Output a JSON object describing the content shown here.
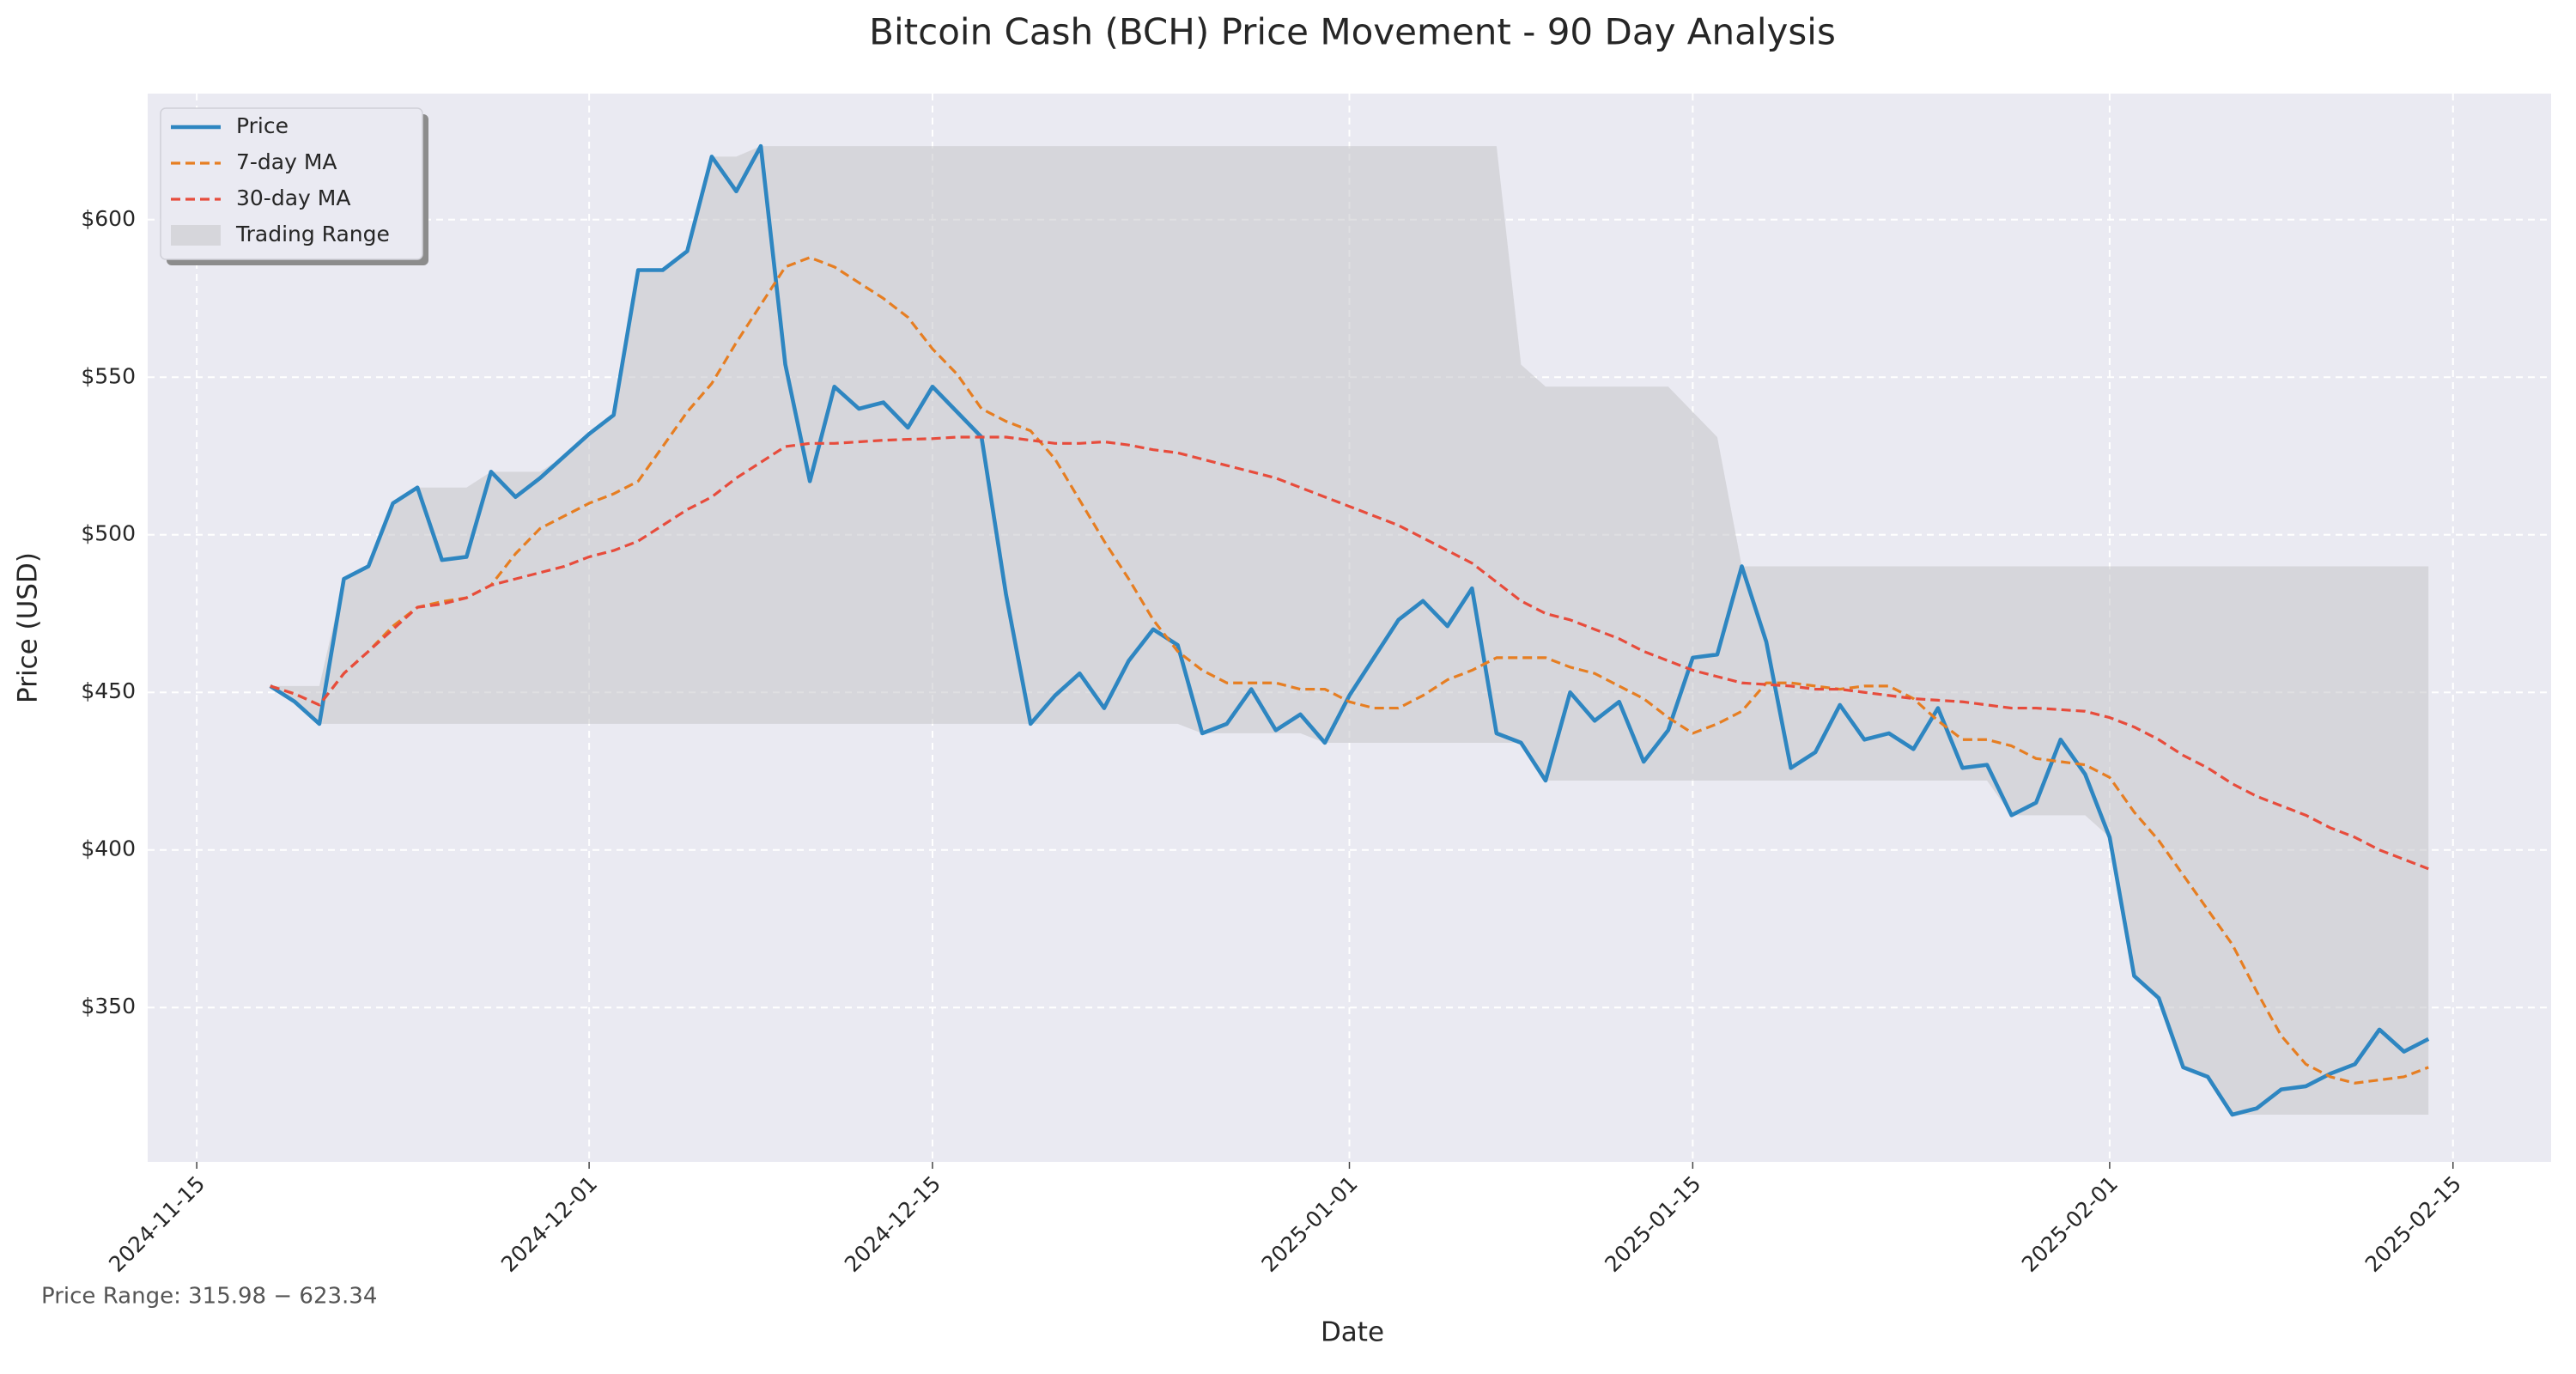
{
  "chart_data": {
    "type": "line",
    "title": "Bitcoin Cash (BCH) Price Movement - 90 Day Analysis",
    "xlabel": "Date",
    "ylabel": "Price (USD)",
    "annotation": "Price Range: 315.98 − 623.34",
    "grid": true,
    "legend": "upper left",
    "x": [
      "2024-11-18",
      "2024-11-19",
      "2024-11-20",
      "2024-11-21",
      "2024-11-22",
      "2024-11-23",
      "2024-11-24",
      "2024-11-25",
      "2024-11-26",
      "2024-11-27",
      "2024-11-28",
      "2024-11-29",
      "2024-11-30",
      "2024-12-01",
      "2024-12-02",
      "2024-12-03",
      "2024-12-04",
      "2024-12-05",
      "2024-12-06",
      "2024-12-07",
      "2024-12-08",
      "2024-12-09",
      "2024-12-10",
      "2024-12-11",
      "2024-12-12",
      "2024-12-13",
      "2024-12-14",
      "2024-12-15",
      "2024-12-16",
      "2024-12-17",
      "2024-12-18",
      "2024-12-19",
      "2024-12-20",
      "2024-12-21",
      "2024-12-22",
      "2024-12-23",
      "2024-12-24",
      "2024-12-25",
      "2024-12-26",
      "2024-12-27",
      "2024-12-28",
      "2024-12-29",
      "2024-12-30",
      "2024-12-31",
      "2025-01-01",
      "2025-01-02",
      "2025-01-03",
      "2025-01-04",
      "2025-01-05",
      "2025-01-06",
      "2025-01-07",
      "2025-01-08",
      "2025-01-09",
      "2025-01-10",
      "2025-01-11",
      "2025-01-12",
      "2025-01-13",
      "2025-01-14",
      "2025-01-15",
      "2025-01-16",
      "2025-01-17",
      "2025-01-18",
      "2025-01-19",
      "2025-01-20",
      "2025-01-21",
      "2025-01-22",
      "2025-01-23",
      "2025-01-24",
      "2025-01-25",
      "2025-01-26",
      "2025-01-27",
      "2025-01-28",
      "2025-01-29",
      "2025-01-30",
      "2025-01-31",
      "2025-02-01",
      "2025-02-02",
      "2025-02-03",
      "2025-02-04",
      "2025-02-05",
      "2025-02-06",
      "2025-02-07",
      "2025-02-08",
      "2025-02-09",
      "2025-02-10",
      "2025-02-11",
      "2025-02-12",
      "2025-02-13",
      "2025-02-14"
    ],
    "series": [
      {
        "name": "Price",
        "color": "#2e86c1",
        "linestyle": "solid",
        "values": [
          452,
          447,
          440,
          486,
          490,
          510,
          515,
          492,
          493,
          520,
          512,
          518,
          525,
          532,
          538,
          584,
          584,
          590,
          620,
          609,
          623.34,
          554,
          517,
          547,
          540,
          542,
          534,
          547,
          539,
          531,
          481,
          440,
          449,
          456,
          445,
          460,
          470,
          465,
          437,
          440,
          451,
          438,
          443,
          434,
          449,
          461,
          473,
          479,
          471,
          483,
          437,
          434,
          422,
          450,
          441,
          447,
          428,
          438,
          461,
          462,
          490,
          466,
          426,
          431,
          446,
          435,
          437,
          432,
          445,
          426,
          427,
          411,
          415,
          435,
          424,
          404,
          360,
          353,
          331,
          328,
          315.98,
          318,
          324,
          325,
          329,
          332,
          343,
          336,
          340
        ]
      },
      {
        "name": "7-day MA",
        "color": "#e67e22",
        "linestyle": "dashed",
        "values": [
          452,
          449.5,
          446,
          456,
          463,
          471,
          477,
          478.8,
          480,
          484,
          494,
          502,
          506,
          510,
          513,
          517,
          528,
          539,
          548,
          561,
          573,
          585,
          588,
          585,
          580,
          575,
          569,
          559,
          551,
          540,
          536,
          533,
          524,
          511,
          498,
          486,
          473,
          463,
          457,
          453,
          453,
          453,
          451,
          451,
          447,
          445,
          445,
          449,
          454,
          457,
          461,
          461,
          461,
          458,
          456,
          452,
          448,
          442,
          437,
          440,
          444,
          453,
          453,
          452,
          451,
          452,
          452,
          448,
          441,
          435,
          435,
          433,
          429,
          428,
          427,
          423,
          412,
          403,
          392,
          381,
          370,
          355,
          341,
          332,
          328,
          326,
          327,
          328,
          331
        ]
      },
      {
        "name": "30-day MA",
        "color": "#e74c3c",
        "linestyle": "dashed",
        "values": [
          452,
          449.5,
          446,
          456,
          463,
          470,
          477,
          478,
          480,
          484,
          486,
          488,
          490,
          493,
          495,
          498,
          503,
          508,
          512,
          518,
          523,
          528,
          529,
          529,
          529.5,
          530,
          530.3,
          530.5,
          531,
          531,
          531,
          530,
          529,
          529,
          529.5,
          528.5,
          527,
          526,
          524,
          522,
          520,
          518,
          515,
          512,
          509,
          506,
          503,
          499,
          495,
          491,
          485,
          479,
          475,
          473,
          470,
          467,
          463,
          460,
          457,
          455,
          453,
          452.5,
          452,
          451,
          451,
          450,
          449,
          448,
          447.5,
          447,
          446,
          445,
          445,
          444.5,
          444,
          442,
          439,
          435,
          430,
          426,
          421,
          417,
          414,
          411,
          407,
          404,
          400,
          397,
          394
        ]
      }
    ],
    "range": {
      "name": "Trading Range",
      "color": "#c4c4c8",
      "high": [
        452,
        452,
        452,
        486,
        490,
        510,
        515,
        515,
        515,
        520,
        520,
        520,
        525,
        532,
        538,
        584,
        584,
        590,
        620,
        620,
        623.34,
        623.34,
        623.34,
        623.34,
        623.34,
        623.34,
        623.34,
        623.34,
        623.34,
        623.34,
        623.34,
        623.34,
        623.34,
        623.34,
        623.34,
        623.34,
        623.34,
        623.34,
        623.34,
        623.34,
        623.34,
        623.34,
        623.34,
        623.34,
        623.34,
        623.34,
        623.34,
        623.34,
        623.34,
        623.34,
        623.34,
        554,
        547,
        547,
        547,
        547,
        547,
        547,
        539,
        531,
        490,
        490,
        490,
        490,
        490,
        490,
        490,
        490,
        490,
        490,
        490,
        490,
        490,
        490,
        490,
        490,
        490,
        490,
        490,
        490,
        490,
        490,
        490,
        490,
        490,
        490,
        490,
        490,
        490
      ],
      "low": [
        452,
        447,
        440,
        440,
        440,
        440,
        440,
        440,
        440,
        440,
        440,
        440,
        440,
        440,
        440,
        440,
        440,
        440,
        440,
        440,
        440,
        440,
        440,
        440,
        440,
        440,
        440,
        440,
        440,
        440,
        440,
        440,
        440,
        440,
        440,
        440,
        440,
        440,
        437,
        437,
        437,
        437,
        437,
        434,
        434,
        434,
        434,
        434,
        434,
        434,
        434,
        434,
        422,
        422,
        422,
        422,
        422,
        422,
        422,
        422,
        422,
        422,
        422,
        422,
        422,
        422,
        422,
        422,
        422,
        422,
        422,
        411,
        411,
        411,
        411,
        404,
        360,
        353,
        331,
        328,
        315.98,
        315.98,
        315.98,
        315.98,
        315.98,
        315.98,
        315.98,
        315.98,
        315.98
      ]
    },
    "xlim": [
      "2024-11-13",
      "2025-02-19"
    ],
    "xticks": [
      "2024-11-15",
      "2024-12-01",
      "2024-12-15",
      "2025-01-01",
      "2025-01-15",
      "2025-02-01",
      "2025-02-15"
    ],
    "ylim": [
      301,
      640
    ],
    "yticks": [
      {
        "value": 350,
        "label": "$350"
      },
      {
        "value": 400,
        "label": "$400"
      },
      {
        "value": 450,
        "label": "$450"
      },
      {
        "value": 500,
        "label": "$500"
      },
      {
        "value": 550,
        "label": "$550"
      },
      {
        "value": 600,
        "label": "$600"
      }
    ]
  }
}
